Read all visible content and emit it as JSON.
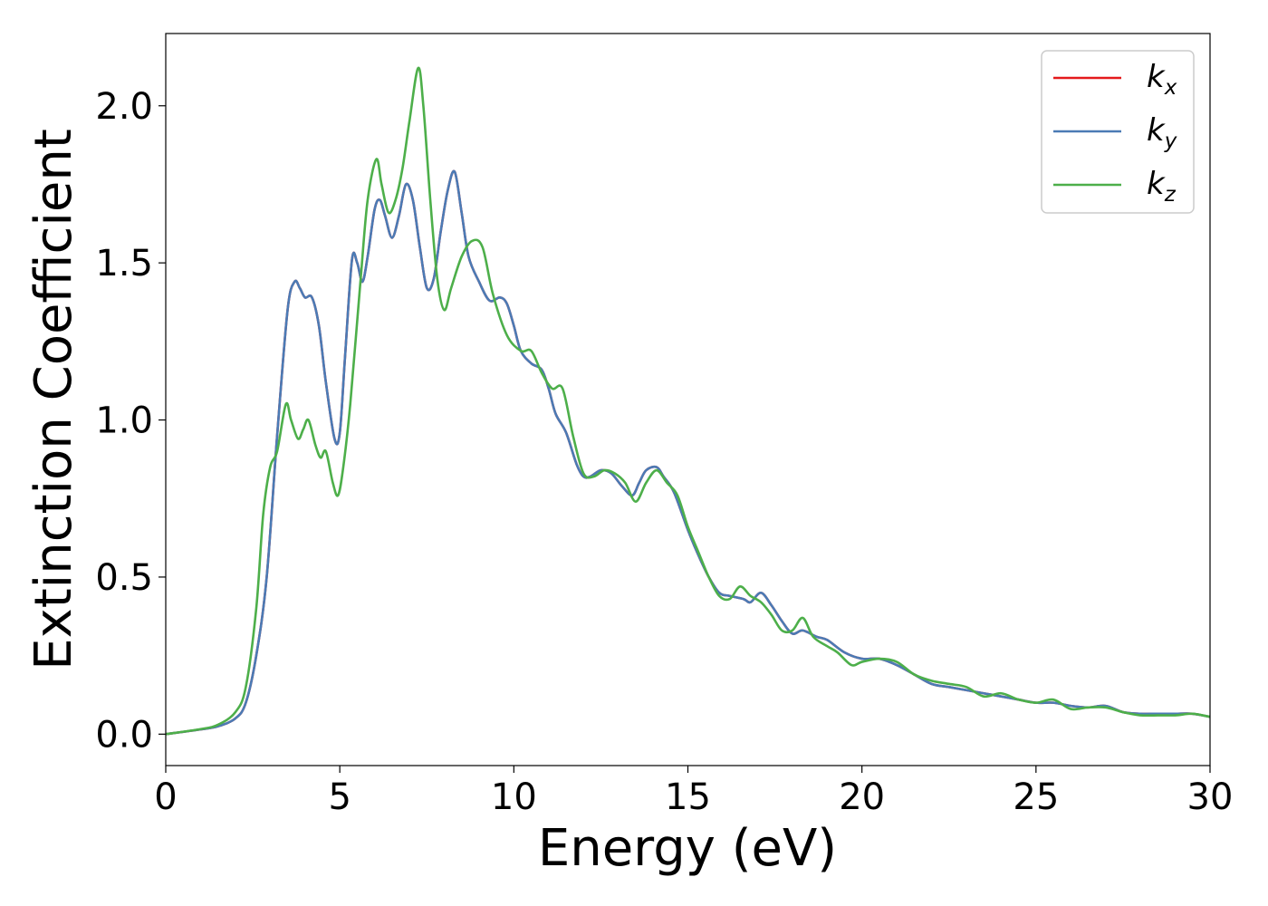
{
  "chart_data": {
    "type": "line",
    "xlabel": "Energy (eV)",
    "ylabel": "Extinction Coefficient",
    "xlim": [
      0,
      30
    ],
    "ylim": [
      -0.1,
      2.23
    ],
    "xticks": [
      "0",
      "5",
      "10",
      "15",
      "20",
      "25",
      "30"
    ],
    "yticks": [
      "0.0",
      "0.5",
      "1.0",
      "1.5",
      "2.0"
    ],
    "grid": false,
    "legend_position": "top-right",
    "series": [
      {
        "name": "k",
        "subscript": "x",
        "color": "#e41a1c",
        "x": [
          0,
          1,
          1.5,
          2,
          2.3,
          2.6,
          2.9,
          3.2,
          3.5,
          3.7,
          3.85,
          4.0,
          4.2,
          4.4,
          4.6,
          4.85,
          5.0,
          5.15,
          5.35,
          5.5,
          5.65,
          5.8,
          6.0,
          6.15,
          6.3,
          6.5,
          6.7,
          6.9,
          7.1,
          7.3,
          7.5,
          7.7,
          7.9,
          8.1,
          8.3,
          8.5,
          8.7,
          9.0,
          9.3,
          9.6,
          9.8,
          10.0,
          10.2,
          10.5,
          10.8,
          11.0,
          11.2,
          11.5,
          11.8,
          12.0,
          12.2,
          12.5,
          12.8,
          13.1,
          13.4,
          13.6,
          13.8,
          14.1,
          14.3,
          14.6,
          15.0,
          15.3,
          15.6,
          15.9,
          16.2,
          16.6,
          16.8,
          17.1,
          17.4,
          17.7,
          18.0,
          18.3,
          18.7,
          19.0,
          19.5,
          20.0,
          20.5,
          21.0,
          21.5,
          22.0,
          22.5,
          23.0,
          23.5,
          24.0,
          24.5,
          25.0,
          25.5,
          26.0,
          26.5,
          27.0,
          27.5,
          28.0,
          28.5,
          29.0,
          29.5,
          30.0
        ],
        "y": [
          0,
          0.015,
          0.025,
          0.05,
          0.1,
          0.25,
          0.5,
          0.95,
          1.35,
          1.44,
          1.42,
          1.39,
          1.39,
          1.3,
          1.12,
          0.94,
          0.96,
          1.2,
          1.51,
          1.5,
          1.44,
          1.52,
          1.67,
          1.7,
          1.65,
          1.58,
          1.65,
          1.75,
          1.7,
          1.55,
          1.42,
          1.45,
          1.6,
          1.73,
          1.79,
          1.66,
          1.52,
          1.44,
          1.38,
          1.39,
          1.37,
          1.3,
          1.22,
          1.18,
          1.16,
          1.1,
          1.02,
          0.96,
          0.86,
          0.82,
          0.82,
          0.84,
          0.83,
          0.79,
          0.76,
          0.8,
          0.84,
          0.85,
          0.82,
          0.77,
          0.65,
          0.57,
          0.5,
          0.45,
          0.44,
          0.43,
          0.42,
          0.45,
          0.41,
          0.36,
          0.32,
          0.33,
          0.31,
          0.3,
          0.26,
          0.24,
          0.24,
          0.22,
          0.19,
          0.16,
          0.15,
          0.14,
          0.13,
          0.12,
          0.11,
          0.1,
          0.1,
          0.09,
          0.085,
          0.09,
          0.07,
          0.065,
          0.065,
          0.065,
          0.065,
          0.055
        ]
      },
      {
        "name": "k",
        "subscript": "y",
        "color": "#4b7bb5",
        "x": [
          0,
          1,
          1.5,
          2,
          2.3,
          2.6,
          2.9,
          3.2,
          3.5,
          3.7,
          3.85,
          4.0,
          4.2,
          4.4,
          4.6,
          4.85,
          5.0,
          5.15,
          5.35,
          5.5,
          5.65,
          5.8,
          6.0,
          6.15,
          6.3,
          6.5,
          6.7,
          6.9,
          7.1,
          7.3,
          7.5,
          7.7,
          7.9,
          8.1,
          8.3,
          8.5,
          8.7,
          9.0,
          9.3,
          9.6,
          9.8,
          10.0,
          10.2,
          10.5,
          10.8,
          11.0,
          11.2,
          11.5,
          11.8,
          12.0,
          12.2,
          12.5,
          12.8,
          13.1,
          13.4,
          13.6,
          13.8,
          14.1,
          14.3,
          14.6,
          15.0,
          15.3,
          15.6,
          15.9,
          16.2,
          16.6,
          16.8,
          17.1,
          17.4,
          17.7,
          18.0,
          18.3,
          18.7,
          19.0,
          19.5,
          20.0,
          20.5,
          21.0,
          21.5,
          22.0,
          22.5,
          23.0,
          23.5,
          24.0,
          24.5,
          25.0,
          25.5,
          26.0,
          26.5,
          27.0,
          27.5,
          28.0,
          28.5,
          29.0,
          29.5,
          30.0
        ],
        "y": [
          0,
          0.015,
          0.025,
          0.05,
          0.1,
          0.25,
          0.5,
          0.95,
          1.35,
          1.44,
          1.42,
          1.39,
          1.39,
          1.3,
          1.12,
          0.94,
          0.96,
          1.2,
          1.51,
          1.5,
          1.44,
          1.52,
          1.67,
          1.7,
          1.65,
          1.58,
          1.65,
          1.75,
          1.7,
          1.55,
          1.42,
          1.45,
          1.6,
          1.73,
          1.79,
          1.66,
          1.52,
          1.44,
          1.38,
          1.39,
          1.37,
          1.3,
          1.22,
          1.18,
          1.16,
          1.1,
          1.02,
          0.96,
          0.86,
          0.82,
          0.82,
          0.84,
          0.83,
          0.79,
          0.76,
          0.8,
          0.84,
          0.85,
          0.82,
          0.77,
          0.65,
          0.57,
          0.5,
          0.45,
          0.44,
          0.43,
          0.42,
          0.45,
          0.41,
          0.36,
          0.32,
          0.33,
          0.31,
          0.3,
          0.26,
          0.24,
          0.24,
          0.22,
          0.19,
          0.16,
          0.15,
          0.14,
          0.13,
          0.12,
          0.11,
          0.1,
          0.1,
          0.09,
          0.085,
          0.09,
          0.07,
          0.065,
          0.065,
          0.065,
          0.065,
          0.055
        ]
      },
      {
        "name": "k",
        "subscript": "z",
        "color": "#4daf4a",
        "x": [
          0,
          1,
          1.5,
          2,
          2.3,
          2.6,
          2.8,
          3.0,
          3.2,
          3.45,
          3.6,
          3.8,
          3.95,
          4.1,
          4.3,
          4.45,
          4.6,
          4.8,
          4.95,
          5.1,
          5.3,
          5.6,
          5.8,
          6.05,
          6.2,
          6.4,
          6.6,
          6.8,
          7.0,
          7.25,
          7.4,
          7.6,
          7.8,
          8.0,
          8.2,
          8.5,
          8.8,
          9.1,
          9.4,
          9.8,
          10.2,
          10.5,
          10.8,
          11.1,
          11.4,
          11.7,
          12.0,
          12.3,
          12.6,
          12.9,
          13.2,
          13.5,
          13.8,
          14.1,
          14.4,
          14.7,
          15.0,
          15.3,
          15.6,
          15.9,
          16.2,
          16.5,
          16.8,
          17.1,
          17.4,
          17.7,
          18.0,
          18.3,
          18.6,
          19.0,
          19.3,
          19.7,
          20.0,
          20.5,
          21.0,
          21.5,
          22.0,
          22.5,
          23.0,
          23.5,
          24.0,
          24.5,
          25.0,
          25.5,
          26.0,
          26.5,
          27.0,
          27.5,
          28.0,
          28.5,
          29.0,
          29.5,
          30.0
        ],
        "y": [
          0,
          0.016,
          0.03,
          0.07,
          0.15,
          0.4,
          0.7,
          0.85,
          0.9,
          1.05,
          1.0,
          0.94,
          0.97,
          1.0,
          0.92,
          0.88,
          0.9,
          0.8,
          0.76,
          0.85,
          1.05,
          1.45,
          1.7,
          1.83,
          1.75,
          1.66,
          1.7,
          1.8,
          1.95,
          2.12,
          2.0,
          1.7,
          1.45,
          1.35,
          1.42,
          1.52,
          1.57,
          1.55,
          1.4,
          1.27,
          1.22,
          1.22,
          1.15,
          1.1,
          1.1,
          0.95,
          0.83,
          0.82,
          0.84,
          0.83,
          0.8,
          0.74,
          0.8,
          0.84,
          0.8,
          0.76,
          0.66,
          0.58,
          0.5,
          0.44,
          0.43,
          0.47,
          0.44,
          0.42,
          0.38,
          0.33,
          0.33,
          0.37,
          0.31,
          0.28,
          0.26,
          0.22,
          0.23,
          0.24,
          0.23,
          0.19,
          0.17,
          0.16,
          0.15,
          0.12,
          0.13,
          0.11,
          0.1,
          0.11,
          0.08,
          0.085,
          0.085,
          0.07,
          0.06,
          0.06,
          0.06,
          0.065,
          0.055
        ]
      }
    ]
  }
}
